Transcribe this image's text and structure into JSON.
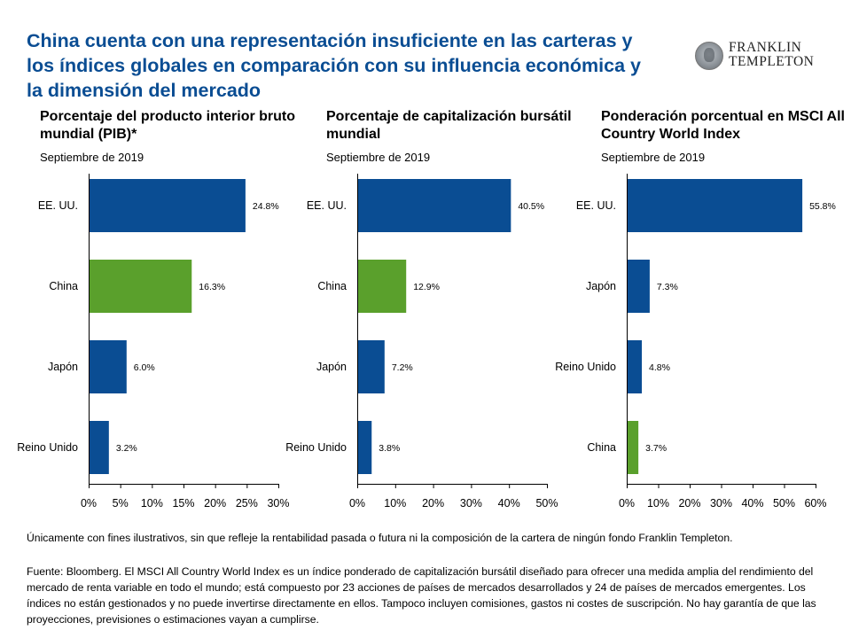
{
  "headline": "China cuenta con una representación insuficiente en las carteras y los índices globales en comparación con su influencia económica y la dimensión del mercado",
  "logo": {
    "line1": "FRANKLIN",
    "line2": "TEMPLETON"
  },
  "colors": {
    "title": "#0a4d93",
    "bar": "#0a4d93",
    "highlight": "#5aa02c"
  },
  "chart_data": [
    {
      "type": "bar",
      "orientation": "horizontal",
      "title": "Porcentaje del producto interior bruto mundial (PIB)*",
      "subtitle": "Septiembre de 2019",
      "categories": [
        "EE. UU.",
        "China",
        "Japón",
        "Reino Unido"
      ],
      "values": [
        24.8,
        16.3,
        6.0,
        3.2
      ],
      "labels": [
        "24.8%",
        "16.3%",
        "6.0%",
        "3.2%"
      ],
      "highlight": "China",
      "xlim": [
        0,
        30
      ],
      "ticks": [
        "0%",
        "5%",
        "10%",
        "15%",
        "20%",
        "25%",
        "30%"
      ]
    },
    {
      "type": "bar",
      "orientation": "horizontal",
      "title": "Porcentaje de capitalización bursátil mundial",
      "subtitle": "Septiembre de 2019",
      "categories": [
        "EE. UU.",
        "China",
        "Japón",
        "Reino Unido"
      ],
      "values": [
        40.5,
        12.9,
        7.2,
        3.8
      ],
      "labels": [
        "40.5%",
        "12.9%",
        "7.2%",
        "3.8%"
      ],
      "highlight": "China",
      "xlim": [
        0,
        50
      ],
      "ticks": [
        "0%",
        "10%",
        "20%",
        "30%",
        "40%",
        "50%"
      ]
    },
    {
      "type": "bar",
      "orientation": "horizontal",
      "title": "Ponderación porcentual en MSCI All Country World Index",
      "subtitle": "Septiembre de 2019",
      "categories": [
        "EE. UU.",
        "Japón",
        "Reino Unido",
        "China"
      ],
      "values": [
        55.8,
        7.3,
        4.8,
        3.7
      ],
      "labels": [
        "55.8%",
        "7.3%",
        "4.8%",
        "3.7%"
      ],
      "highlight": "China",
      "xlim": [
        0,
        60
      ],
      "ticks": [
        "0%",
        "10%",
        "20%",
        "30%",
        "40%",
        "50%",
        "60%"
      ]
    }
  ],
  "footnote": "Únicamente con fines ilustrativos, sin que refleje la rentabilidad pasada o futura  ni la composición de la cartera de ningún fondo Franklin Templeton.",
  "source": "Fuente: Bloomberg. El MSCI All Country World Index es un índice ponderado de capitalización bursátil diseñado para ofrecer una medida amplia del rendimiento del mercado de renta variable en todo el mundo; está compuesto por 23 acciones de países de mercados desarrollados y 24 de países de mercados emergentes. Los índices no están gestionados y no puede invertirse directamente en ellos. Tampoco incluyen comisiones, gastos ni costes de suscripción. No hay garantía de que las proyecciones, previsiones o estimaciones vayan a cumplirse."
}
